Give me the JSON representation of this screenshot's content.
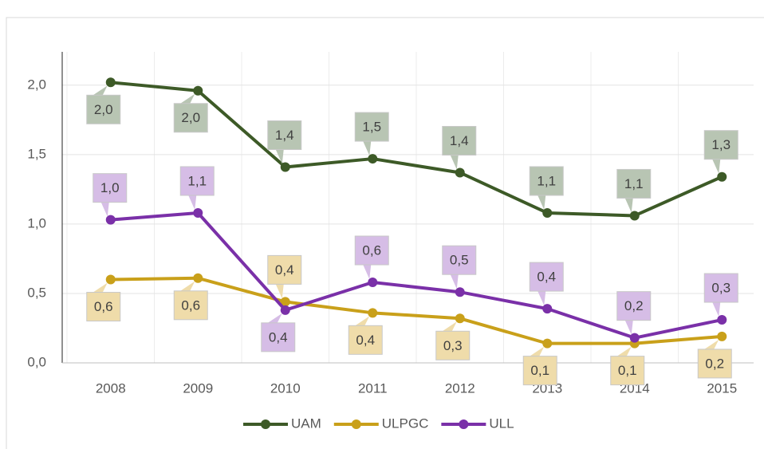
{
  "chart_data": {
    "type": "line",
    "categories": [
      "2008",
      "2009",
      "2010",
      "2011",
      "2012",
      "2013",
      "2014",
      "2015"
    ],
    "series": [
      {
        "name": "UAM",
        "color": "#3d5a27",
        "label_color": "#b8c5b3",
        "values": [
          2.02,
          1.96,
          1.41,
          1.47,
          1.37,
          1.08,
          1.06,
          1.34
        ],
        "value_labels": [
          "2,0",
          "2,0",
          "1,4",
          "1,5",
          "1,4",
          "1,1",
          "1,1",
          "1,3"
        ]
      },
      {
        "name": "ULPGC",
        "color": "#c9a01a",
        "label_color": "#efdcaa",
        "values": [
          0.6,
          0.61,
          0.44,
          0.36,
          0.32,
          0.14,
          0.14,
          0.19
        ],
        "value_labels": [
          "0,6",
          "0,6",
          "0,4",
          "0,4",
          "0,3",
          "0,1",
          "0,1",
          "0,2"
        ]
      },
      {
        "name": "ULL",
        "color": "#7a30a8",
        "label_color": "#d6bde6",
        "values": [
          1.03,
          1.08,
          0.38,
          0.58,
          0.51,
          0.39,
          0.18,
          0.31
        ],
        "value_labels": [
          "1,0",
          "1,1",
          "0,4",
          "0,6",
          "0,5",
          "0,4",
          "0,2",
          "0,3"
        ]
      }
    ],
    "ylim": [
      0,
      2.24
    ],
    "yticks": [
      {
        "value": 0,
        "label": "0,0"
      },
      {
        "value": 0.5,
        "label": "0,5"
      },
      {
        "value": 1,
        "label": "1,0"
      },
      {
        "value": 1.5,
        "label": "1,5"
      },
      {
        "value": 2,
        "label": "2,0"
      }
    ],
    "grid": true
  }
}
